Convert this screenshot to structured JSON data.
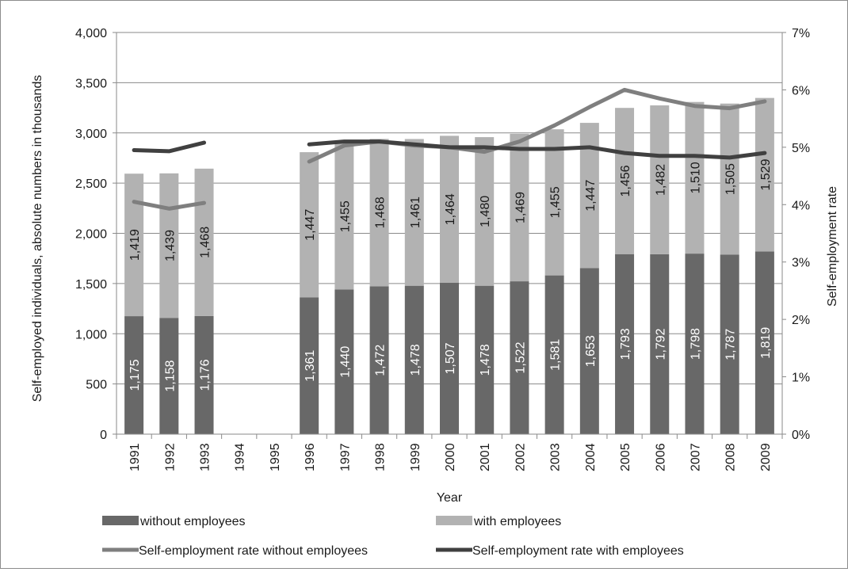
{
  "chart_data": {
    "type": "bar",
    "stacked": true,
    "categories": [
      "1991",
      "1992",
      "1993",
      "1994",
      "1995",
      "1996",
      "1997",
      "1998",
      "1999",
      "2000",
      "2001",
      "2002",
      "2003",
      "2004",
      "2005",
      "2006",
      "2007",
      "2008",
      "2009"
    ],
    "xlabel": "Year",
    "ylabel": "Self-employed individuals, absolute numbers in thousands",
    "y2label": "Self-employment rate",
    "ylim": [
      0,
      4000
    ],
    "yticks": [
      0,
      500,
      1000,
      1500,
      2000,
      2500,
      3000,
      3500,
      4000
    ],
    "ytick_labels": [
      "0",
      "500",
      "1,000",
      "1,500",
      "2,000",
      "2,500",
      "3,000",
      "3,500",
      "4,000"
    ],
    "y2lim": [
      0,
      7
    ],
    "y2ticks": [
      0,
      1,
      2,
      3,
      4,
      5,
      6,
      7
    ],
    "y2tick_labels": [
      "0%",
      "1%",
      "2%",
      "3%",
      "4%",
      "5%",
      "6%",
      "7%"
    ],
    "grid": true,
    "legend_position": "bottom",
    "series": [
      {
        "name": "without employees",
        "kind": "bar",
        "color": "#686868",
        "label_color": "#ffffff",
        "values": [
          1175,
          1158,
          1176,
          null,
          null,
          1361,
          1440,
          1472,
          1478,
          1507,
          1478,
          1522,
          1581,
          1653,
          1793,
          1792,
          1798,
          1787,
          1819
        ],
        "labels": [
          "1,175",
          "1,158",
          "1,176",
          null,
          null,
          "1,361",
          "1,440",
          "1,472",
          "1,478",
          "1,507",
          "1,478",
          "1,522",
          "1,581",
          "1,653",
          "1,793",
          "1,792",
          "1,798",
          "1,787",
          "1,819"
        ]
      },
      {
        "name": "with employees",
        "kind": "bar",
        "color": "#b2b2b2",
        "label_color": "#1a1a1a",
        "values": [
          1419,
          1439,
          1468,
          null,
          null,
          1447,
          1455,
          1468,
          1461,
          1464,
          1480,
          1469,
          1455,
          1447,
          1456,
          1482,
          1510,
          1505,
          1529
        ],
        "labels": [
          "1,419",
          "1,439",
          "1,468",
          null,
          null,
          "1,447",
          "1,455",
          "1,468",
          "1,461",
          "1,464",
          "1,480",
          "1,469",
          "1,455",
          "1,447",
          "1,456",
          "1,482",
          "1,510",
          "1,505",
          "1,529"
        ]
      },
      {
        "name": "Self-employment rate without employees",
        "kind": "line",
        "axis": "right",
        "color": "#7f7f7f",
        "values": [
          4.05,
          3.93,
          4.03,
          null,
          null,
          4.75,
          5.03,
          5.1,
          5.03,
          5.0,
          4.92,
          5.1,
          5.38,
          5.7,
          6.0,
          5.85,
          5.72,
          5.68,
          5.8
        ]
      },
      {
        "name": "Self-employment rate with employees",
        "kind": "line",
        "axis": "right",
        "color": "#404040",
        "values": [
          4.95,
          4.93,
          5.08,
          null,
          null,
          5.05,
          5.1,
          5.1,
          5.05,
          5.0,
          5.0,
          4.97,
          4.97,
          5.0,
          4.9,
          4.85,
          4.85,
          4.82,
          4.9
        ]
      }
    ]
  }
}
